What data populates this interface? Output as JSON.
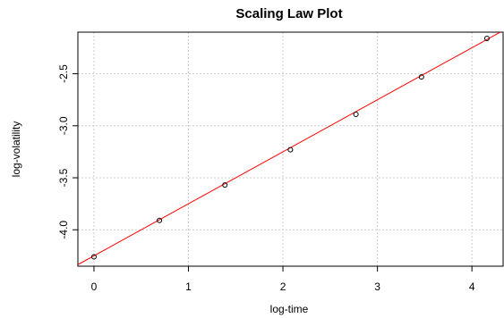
{
  "chart_data": {
    "type": "scatter",
    "title": "Scaling Law Plot",
    "xlabel": "log-time",
    "ylabel": "log-volatility",
    "xlim": [
      -0.17,
      4.33
    ],
    "ylim": [
      -4.35,
      -2.1
    ],
    "x_ticks": [
      0,
      1,
      2,
      3,
      4
    ],
    "x_tick_labels": [
      "0",
      "1",
      "2",
      "3",
      "4"
    ],
    "y_ticks": [
      -4.0,
      -3.5,
      -3.0,
      -2.5
    ],
    "y_tick_labels": [
      "-4.0",
      "-3.5",
      "-3.0",
      "-2.5"
    ],
    "grid": true,
    "series": [
      {
        "kind": "points",
        "marker": "open-circle",
        "color": "#000000",
        "x": [
          0.0,
          0.693,
          1.386,
          2.079,
          2.773,
          3.466,
          4.159
        ],
        "y": [
          -4.26,
          -3.91,
          -3.57,
          -3.23,
          -2.89,
          -2.53,
          -2.16
        ]
      },
      {
        "kind": "fit-line",
        "color": "#ff0000",
        "intercept": -4.25,
        "slope": 0.5
      }
    ]
  }
}
